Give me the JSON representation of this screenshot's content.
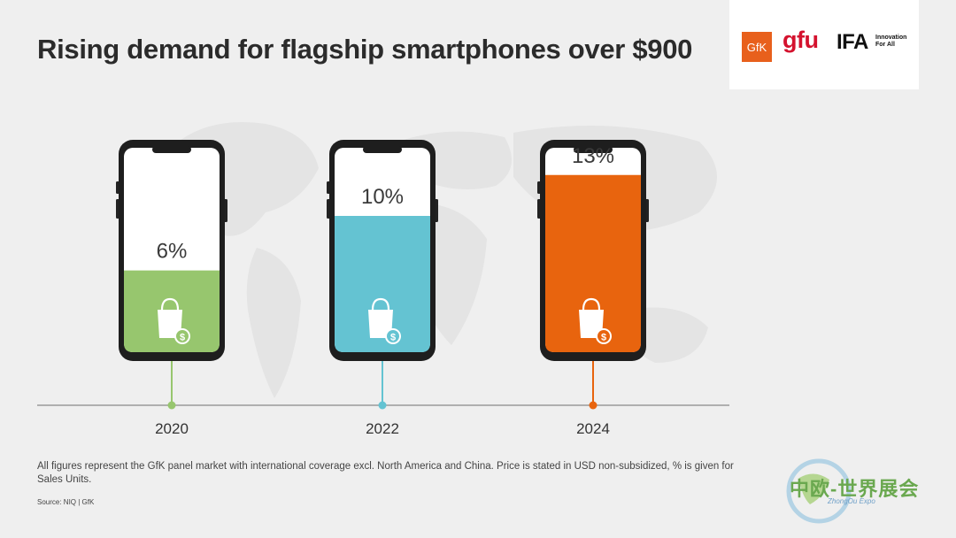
{
  "title": "Rising demand for flagship smartphones over $900",
  "logos": {
    "gfk": "GfK",
    "gfu": "gfu",
    "ifa": "IFA",
    "ifa_tagline": "Innovation For All"
  },
  "chart_data": {
    "type": "bar",
    "categories": [
      "2020",
      "2022",
      "2024"
    ],
    "values": [
      6,
      10,
      13
    ],
    "labels": [
      "6%",
      "10%",
      "13%"
    ],
    "ylim": [
      0,
      15
    ],
    "colors": [
      "#97c66e",
      "#64c3d2",
      "#e8640e"
    ],
    "xlabel": "",
    "ylabel": "",
    "grid": false
  },
  "footnote": "All figures represent the GfK panel market with international coverage excl. North America and China. Price is stated in USD non-subsidized, % is given for Sales Units.",
  "source": "Source: NIQ | GfK",
  "watermark": {
    "title": "中欧-世界展会",
    "subtitle": "ZhongOu Expo"
  },
  "icons": [
    "shopping-bag-dollar-icon",
    "world-map-icon"
  ]
}
